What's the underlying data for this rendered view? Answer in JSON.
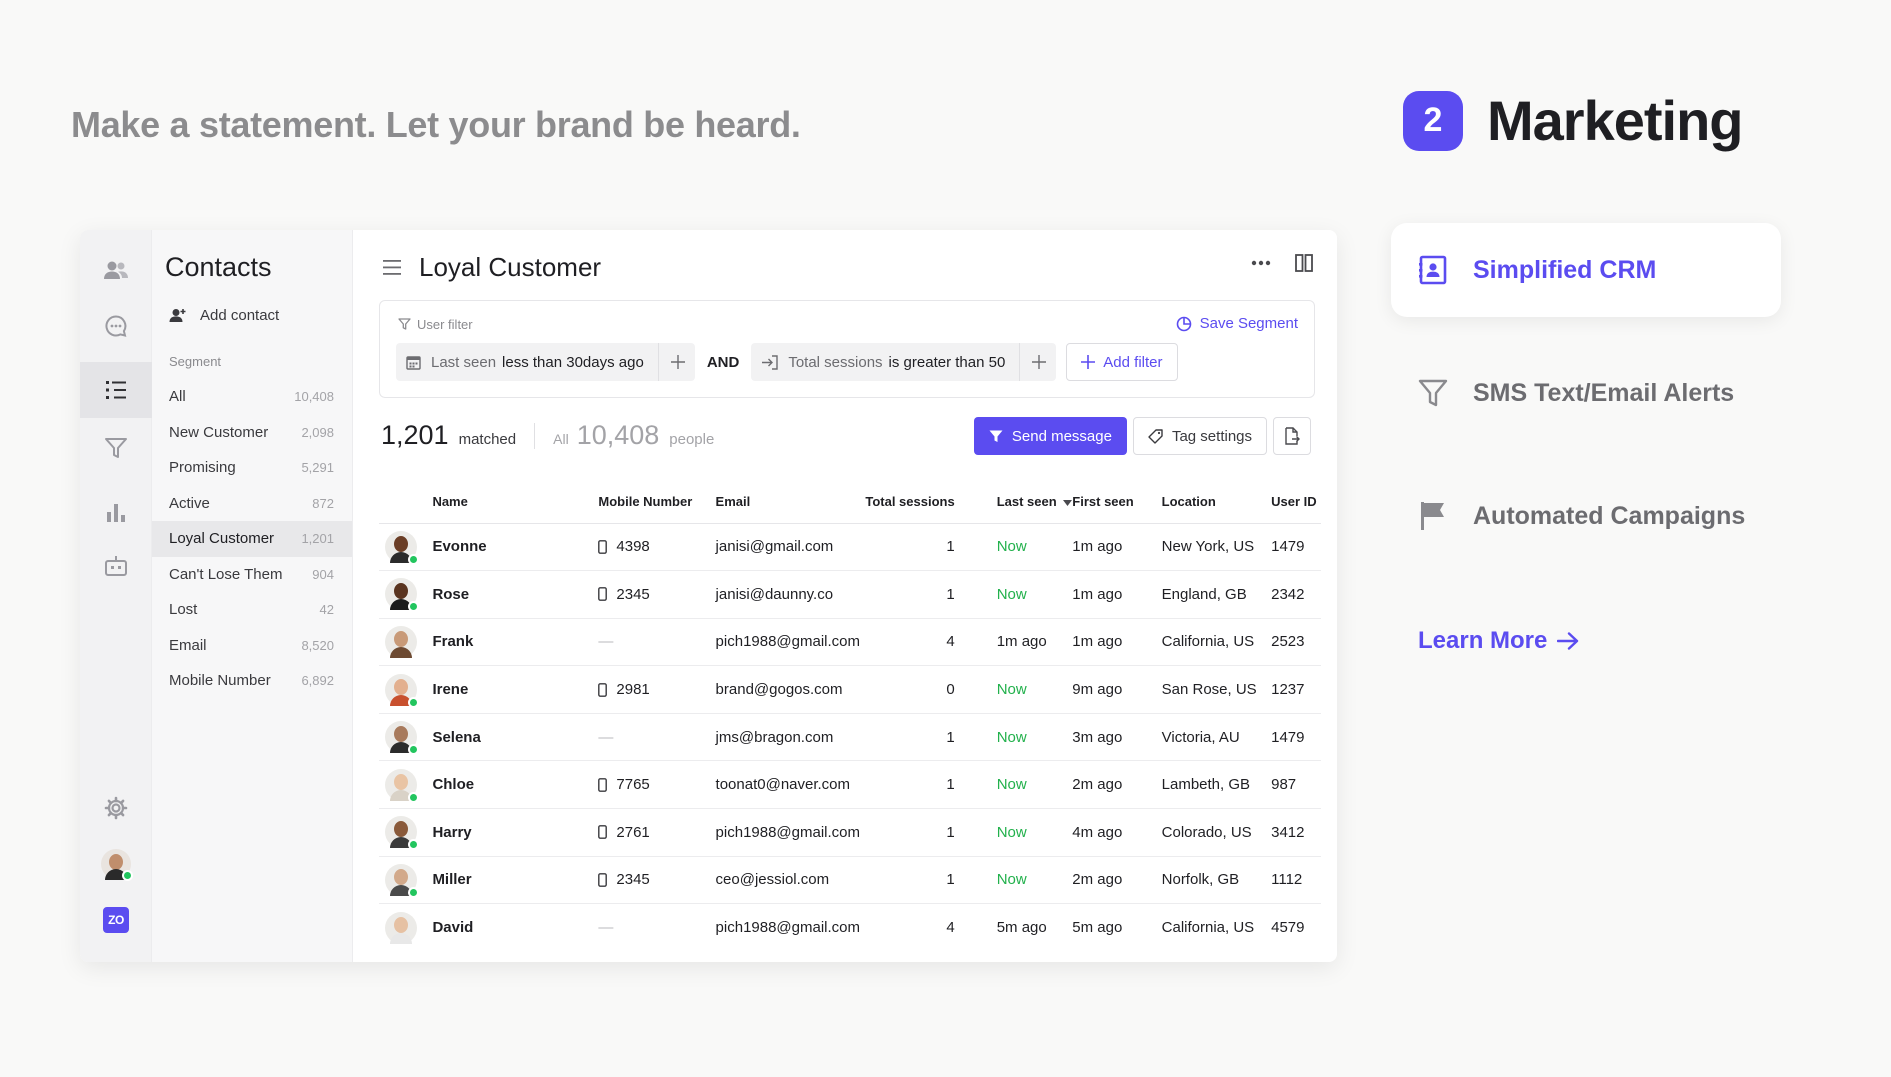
{
  "tagline": "Make a statement. Let your brand be heard.",
  "section": {
    "step": "2",
    "title": "Marketing"
  },
  "features": [
    {
      "label": "Simplified CRM",
      "icon": "contact-book-icon",
      "active": true
    },
    {
      "label": "SMS Text/Email Alerts",
      "icon": "filter-funnel-icon",
      "active": false
    },
    {
      "label": "Automated Campaigns",
      "icon": "flag-icon",
      "active": false
    }
  ],
  "learn_more": "Learn More",
  "colors": {
    "accent": "#5b4cf0",
    "online": "#22c55e",
    "now": "#22b14c"
  },
  "app": {
    "rail_icons": [
      "users-icon",
      "chat-icon",
      "list-icon",
      "funnel-icon",
      "bar-chart-icon",
      "bot-icon",
      "gear-icon",
      "user-avatar",
      "zo-logo"
    ],
    "sidebar": {
      "title": "Contacts",
      "add_contact": "Add contact",
      "segment_label": "Segment",
      "segments": [
        {
          "name": "All",
          "count": "10,408"
        },
        {
          "name": "New Customer",
          "count": "2,098"
        },
        {
          "name": "Promising",
          "count": "5,291"
        },
        {
          "name": "Active",
          "count": "872"
        },
        {
          "name": "Loyal Customer",
          "count": "1,201"
        },
        {
          "name": "Can't Lose Them",
          "count": "904"
        },
        {
          "name": "Lost",
          "count": "42"
        },
        {
          "name": "Email",
          "count": "8,520"
        },
        {
          "name": "Mobile Number",
          "count": "6,892"
        }
      ],
      "active_segment": 4
    },
    "main": {
      "title": "Loyal Customer",
      "filter": {
        "label": "User filter",
        "save_segment": "Save Segment",
        "chip1": {
          "field": "Last seen",
          "condition": "less than 30days ago"
        },
        "joiner": "AND",
        "chip2": {
          "field": "Total sessions",
          "condition": "is greater than 50"
        },
        "add_filter": "Add filter"
      },
      "summary": {
        "matched": "1,201",
        "matched_label": "matched",
        "all_label": "All",
        "all_count": "10,408",
        "people_label": "people"
      },
      "toolbar": {
        "send_message": "Send message",
        "tag_settings": "Tag settings"
      },
      "columns": [
        "Name",
        "Mobile Number",
        "Email",
        "Total sessions",
        "Last seen",
        "First seen",
        "Location",
        "User ID"
      ],
      "rows": [
        {
          "name": "Evonne",
          "mobile": "4398",
          "email": "janisi@gmail.com",
          "sessions": "1",
          "last_seen": "Now",
          "first_seen": "1m ago",
          "location": "New York, US",
          "user_id": "1479",
          "online": true,
          "skin": "#6b3e26",
          "shirt": "#2b2b2b"
        },
        {
          "name": "Rose",
          "mobile": "2345",
          "email": "janisi@daunny.co",
          "sessions": "1",
          "last_seen": "Now",
          "first_seen": "1m ago",
          "location": "England, GB",
          "user_id": "2342",
          "online": true,
          "skin": "#5a3420",
          "shirt": "#1b1b1b"
        },
        {
          "name": "Frank",
          "mobile": "—",
          "email": "pich1988@gmail.com",
          "sessions": "4",
          "last_seen": "1m ago",
          "first_seen": "1m ago",
          "location": "California, US",
          "user_id": "2523",
          "online": false,
          "skin": "#c89a78",
          "shirt": "#6d4a32"
        },
        {
          "name": "Irene",
          "mobile": "2981",
          "email": "brand@gogos.com",
          "sessions": "0",
          "last_seen": "Now",
          "first_seen": "9m ago",
          "location": "San Rose, US",
          "user_id": "1237",
          "online": true,
          "skin": "#e3b08f",
          "shirt": "#c8502e"
        },
        {
          "name": "Selena",
          "mobile": "—",
          "email": "jms@bragon.com",
          "sessions": "1",
          "last_seen": "Now",
          "first_seen": "3m ago",
          "location": "Victoria, AU",
          "user_id": "1479",
          "online": true,
          "skin": "#a87a5c",
          "shirt": "#2c2c2c"
        },
        {
          "name": "Chloe",
          "mobile": "7765",
          "email": "toonat0@naver.com",
          "sessions": "1",
          "last_seen": "Now",
          "first_seen": "2m ago",
          "location": "Lambeth, GB",
          "user_id": "987",
          "online": true,
          "skin": "#e9c4a4",
          "shirt": "#d9d2c7"
        },
        {
          "name": "Harry",
          "mobile": "2761",
          "email": "pich1988@gmail.com",
          "sessions": "1",
          "last_seen": "Now",
          "first_seen": "4m ago",
          "location": "Colorado, US",
          "user_id": "3412",
          "online": true,
          "skin": "#8a5a3a",
          "shirt": "#3a3a3a"
        },
        {
          "name": "Miller",
          "mobile": "2345",
          "email": "ceo@jessiol.com",
          "sessions": "1",
          "last_seen": "Now",
          "first_seen": "2m ago",
          "location": "Norfolk, GB",
          "user_id": "1112",
          "online": true,
          "skin": "#d2a98a",
          "shirt": "#4a4a4a"
        },
        {
          "name": "David",
          "mobile": "—",
          "email": "pich1988@gmail.com",
          "sessions": "4",
          "last_seen": "5m ago",
          "first_seen": "5m ago",
          "location": "California, US",
          "user_id": "4579",
          "online": false,
          "skin": "#e6c1a3",
          "shirt": "#e8e8e8"
        }
      ]
    }
  }
}
